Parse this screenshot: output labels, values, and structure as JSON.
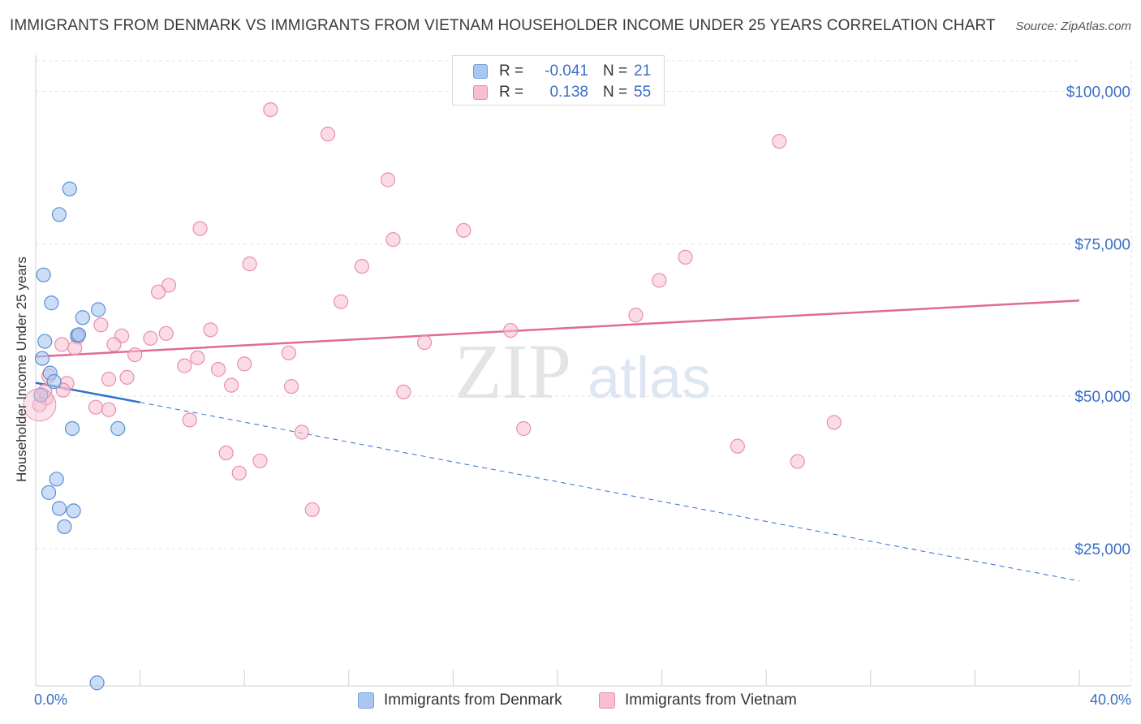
{
  "title": "IMMIGRANTS FROM DENMARK VS IMMIGRANTS FROM VIETNAM HOUSEHOLDER INCOME UNDER 25 YEARS CORRELATION CHART",
  "source": "Source: ZipAtlas.com",
  "watermark": {
    "zip": "ZIP",
    "atlas": "atlas"
  },
  "legend": {
    "r_label": "R =",
    "n_label": "N =",
    "rows": [
      {
        "r": "-0.041",
        "n": "21",
        "color": "#a9c8f0",
        "border": "#6f9fdc"
      },
      {
        "r": "0.138",
        "n": "55",
        "color": "#f7bfd1",
        "border": "#e88aaa"
      }
    ]
  },
  "colors": {
    "denmark_fill": "#a9c8f0",
    "denmark_stroke": "#5b8fd6",
    "denmark_line": "#2f6fd0",
    "vietnam_fill": "#f7bfd1",
    "vietnam_stroke": "#e98ead",
    "vietnam_line": "#e06a95",
    "axis_text": "#3a6fc4",
    "grid": "#e3e3e3"
  },
  "chart_data": {
    "type": "scatter",
    "title": "IMMIGRANTS FROM DENMARK VS IMMIGRANTS FROM VIETNAM HOUSEHOLDER INCOME UNDER 25 YEARS CORRELATION CHART",
    "xlabel": "",
    "ylabel": "Householder Income Under 25 years",
    "x_range": [
      0,
      40
    ],
    "y_range": [
      2500,
      105000
    ],
    "x_tick_labels": [
      "0.0%",
      "40.0%"
    ],
    "y_ticks": [
      25000,
      50000,
      75000,
      100000
    ],
    "y_tick_labels": [
      "$25,000",
      "$50,000",
      "$75,000",
      "$100,000"
    ],
    "grid": true,
    "legend_position": "top-center",
    "series": [
      {
        "name": "Immigrants from Denmark",
        "r": -0.041,
        "n": 21,
        "points": [
          [
            0.25,
            56200
          ],
          [
            0.35,
            59000
          ],
          [
            0.3,
            69900
          ],
          [
            0.6,
            65300
          ],
          [
            0.55,
            53800
          ],
          [
            1.3,
            84000
          ],
          [
            0.9,
            79800
          ],
          [
            1.6,
            60000
          ],
          [
            1.8,
            62900
          ],
          [
            2.4,
            64200
          ],
          [
            0.7,
            52400
          ],
          [
            1.4,
            44700
          ],
          [
            3.15,
            44700
          ],
          [
            0.8,
            36400
          ],
          [
            0.5,
            34200
          ],
          [
            0.9,
            31600
          ],
          [
            1.45,
            31200
          ],
          [
            1.1,
            28600
          ],
          [
            2.35,
            3000
          ],
          [
            0.2,
            50200
          ],
          [
            1.65,
            60100
          ]
        ],
        "trend_solid": [
          [
            0,
            52200
          ],
          [
            4.0,
            49000
          ]
        ],
        "trend_dashed": [
          [
            4.0,
            49000
          ],
          [
            40,
            19700
          ]
        ]
      },
      {
        "name": "Immigrants from Vietnam",
        "r": 0.138,
        "n": 55,
        "points": [
          [
            9.0,
            97000
          ],
          [
            11.2,
            93000
          ],
          [
            13.5,
            85500
          ],
          [
            28.5,
            91800
          ],
          [
            6.3,
            77500
          ],
          [
            13.7,
            75700
          ],
          [
            16.4,
            77200
          ],
          [
            8.2,
            71700
          ],
          [
            12.5,
            71300
          ],
          [
            24.9,
            72800
          ],
          [
            23.9,
            69000
          ],
          [
            5.1,
            68200
          ],
          [
            4.7,
            67100
          ],
          [
            11.7,
            65500
          ],
          [
            23.0,
            63300
          ],
          [
            2.5,
            61700
          ],
          [
            6.7,
            60900
          ],
          [
            18.2,
            60800
          ],
          [
            3.3,
            59900
          ],
          [
            4.4,
            59500
          ],
          [
            5.0,
            60300
          ],
          [
            1.6,
            59700
          ],
          [
            1.0,
            58500
          ],
          [
            14.9,
            58800
          ],
          [
            1.5,
            57900
          ],
          [
            3.8,
            56800
          ],
          [
            6.2,
            56300
          ],
          [
            9.7,
            57100
          ],
          [
            5.7,
            55000
          ],
          [
            7.0,
            54400
          ],
          [
            8.0,
            55300
          ],
          [
            2.8,
            52800
          ],
          [
            3.5,
            53100
          ],
          [
            1.2,
            52100
          ],
          [
            0.5,
            53300
          ],
          [
            7.5,
            51800
          ],
          [
            9.8,
            51600
          ],
          [
            14.1,
            50700
          ],
          [
            0.4,
            49700
          ],
          [
            2.3,
            48200
          ],
          [
            2.8,
            47800
          ],
          [
            5.9,
            46100
          ],
          [
            10.2,
            44100
          ],
          [
            18.7,
            44700
          ],
          [
            30.6,
            45700
          ],
          [
            26.9,
            41800
          ],
          [
            7.3,
            40700
          ],
          [
            8.6,
            39400
          ],
          [
            7.8,
            37400
          ],
          [
            29.2,
            39300
          ],
          [
            10.6,
            31400
          ],
          [
            0.15,
            48600
          ],
          [
            0.35,
            50800
          ],
          [
            1.05,
            51000
          ],
          [
            3.0,
            58500
          ]
        ],
        "trend_solid": [
          [
            0,
            56500
          ],
          [
            40,
            65700
          ]
        ]
      }
    ]
  }
}
